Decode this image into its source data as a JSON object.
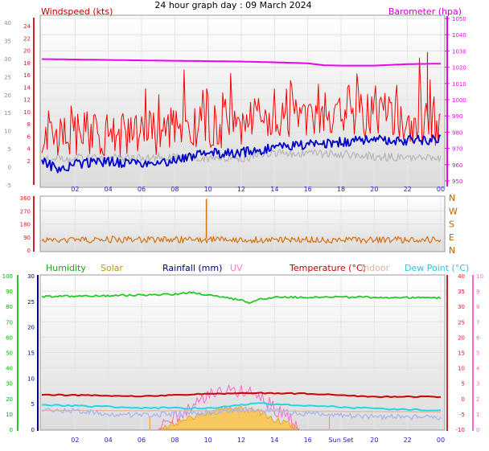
{
  "title": "24 hour graph day : 09 March 2024",
  "colors": {
    "wind_gust": "#ff0000",
    "wind_avg": "#0000cc",
    "wind_grey": "#b8b8b8",
    "baro": "#ee00ee",
    "wind_dir": "#d87010",
    "humidity": "#22cc22",
    "solar": "#c8a000",
    "rainfall": "#000080",
    "uv": "#ff66cc",
    "temperature": "#cc0000",
    "indoor": "#e8b8a0",
    "dew_point": "#22d8e8",
    "dew_lavender": "#aab4ee",
    "solar_fill": "#f8c860",
    "time_ticks": "#2222bb",
    "left_axis": "#cc2222"
  },
  "chart_data": [
    {
      "type": "line",
      "name": "wind_baro",
      "left_axis_title": "Windspeed (kts)",
      "right_axis_title": "Barometer (hpa)",
      "left_ticks_outer": [
        "-5",
        "0",
        "5",
        "10",
        "15",
        "20",
        "25",
        "30",
        "35",
        "40"
      ],
      "left_ticks_inner": [
        "2",
        "4",
        "6",
        "8",
        "10",
        "12",
        "14",
        "16",
        "18",
        "20",
        "22",
        "24"
      ],
      "right_ticks": [
        "950",
        "960",
        "970",
        "980",
        "990",
        "1000",
        "1010",
        "1020",
        "1030",
        "1040",
        "1050"
      ],
      "x_ticks": [
        "02",
        "04",
        "06",
        "08",
        "10",
        "12",
        "14",
        "16",
        "18",
        "20",
        "22",
        "00"
      ],
      "ylim_kts": [
        0,
        25
      ],
      "ylim_hpa": [
        950,
        1050
      ],
      "series": [
        {
          "key": "baro",
          "hours": [
            0,
            6,
            12,
            14,
            16,
            17,
            18,
            20,
            22,
            24
          ],
          "values": [
            1025,
            1024.2,
            1023.5,
            1023.0,
            1022.4,
            1021.2,
            1021.0,
            1021.0,
            1021.9,
            1022.2
          ]
        },
        {
          "key": "gust",
          "hours": [
            0,
            2,
            4,
            6,
            8,
            10,
            12,
            14,
            16,
            18,
            20,
            22,
            23,
            24
          ],
          "values": [
            6.0,
            7.5,
            7.2,
            7.3,
            7.8,
            8.4,
            8.6,
            10.0,
            10.2,
            10.0,
            10.3,
            9.5,
            9.0,
            8.6
          ]
        },
        {
          "key": "avg",
          "hours": [
            0,
            1,
            2,
            4,
            6,
            7,
            8,
            10,
            12,
            14,
            16,
            18,
            20,
            22,
            24
          ],
          "values": [
            3.0,
            1.8,
            2.6,
            3.0,
            2.6,
            2.5,
            3.4,
            4.2,
            4.4,
            5.0,
            5.6,
            6.0,
            6.4,
            6.2,
            6.4
          ]
        },
        {
          "key": "grey",
          "hours": [
            0,
            4,
            8,
            12,
            14,
            16,
            18,
            20,
            22,
            24
          ],
          "values": [
            3.5,
            3.5,
            3.6,
            3.5,
            4.3,
            4.2,
            4.1,
            3.8,
            3.5,
            3.6
          ]
        }
      ]
    },
    {
      "type": "line",
      "name": "wind_direction",
      "left_ticks": [
        "0",
        "90",
        "180",
        "270",
        "360"
      ],
      "right_labels": [
        "N",
        "W",
        "S",
        "E",
        "N"
      ],
      "ylim": [
        0,
        360
      ],
      "series": [
        {
          "key": "direction",
          "hours": [
            0,
            6,
            12,
            18,
            24
          ],
          "values": [
            72,
            72,
            70,
            70,
            72
          ]
        }
      ]
    },
    {
      "type": "line",
      "name": "temp_humidity",
      "legend": [
        "Humidity",
        "Solar",
        "Rainfall (mm)",
        "UV",
        "Temperature (°C)",
        "Indoor",
        "Dew Point (°C)"
      ],
      "left_outer_ticks": [
        "0",
        "10",
        "20",
        "30",
        "40",
        "50",
        "60",
        "70",
        "80",
        "90",
        "100"
      ],
      "left_inner_ticks": [
        "0",
        "5",
        "10",
        "15",
        "20",
        "25",
        "30"
      ],
      "right_inner_ticks": [
        "-10",
        "-5",
        "0",
        "5",
        "10",
        "15",
        "20",
        "25",
        "30",
        "35",
        "40"
      ],
      "right_outer_ticks": [
        "0",
        "1",
        "2",
        "3",
        "4",
        "5",
        "6",
        "7",
        "8",
        "9",
        "10"
      ],
      "x_ticks": [
        "02",
        "04",
        "06",
        "08",
        "10",
        "12",
        "14",
        "16",
        "Sun Set",
        "20",
        "22",
        "00"
      ],
      "sun_set_label": "Sun Set",
      "ylim_humidity": [
        0,
        100
      ],
      "ylim_temp": [
        -10,
        40
      ],
      "series": [
        {
          "key": "humidity",
          "hours": [
            0,
            4,
            8,
            9,
            10,
            11,
            12,
            12.5,
            13,
            14,
            16,
            20,
            24
          ],
          "values": [
            86.5,
            87.0,
            88.0,
            89.0,
            87.5,
            86.0,
            84.0,
            82.5,
            84.5,
            86.0,
            86.0,
            86.0,
            85.5
          ]
        },
        {
          "key": "indoor",
          "hours": [
            0,
            12,
            24
          ],
          "values": [
            12.3,
            12.0,
            11.3
          ]
        },
        {
          "key": "temperature",
          "hours": [
            0,
            6,
            10,
            13,
            16,
            20,
            24
          ],
          "values": [
            1.3,
            0.7,
            1.6,
            1.8,
            1.6,
            0.6,
            0.6
          ]
        },
        {
          "key": "dew_point",
          "hours": [
            0,
            6,
            10,
            13,
            16,
            20,
            24
          ],
          "values": [
            -2.0,
            -3.0,
            -3.2,
            -1.5,
            -2.3,
            -3.2,
            -3.8
          ]
        },
        {
          "key": "dew_lavender",
          "hours": [
            0,
            6,
            10,
            13,
            16,
            20,
            24
          ],
          "values": [
            -3.2,
            -5.5,
            -4.5,
            -3.5,
            -5.0,
            -6.0,
            -6.0
          ]
        },
        {
          "key": "solar",
          "hours": [
            7.0,
            8.0,
            9.0,
            10.0,
            11.0,
            12.0,
            13.0,
            14.0,
            15.0,
            15.5
          ],
          "values": [
            0,
            1.2,
            2.4,
            3.5,
            3.8,
            4.0,
            3.6,
            2.0,
            0.8,
            0
          ]
        }
      ]
    }
  ]
}
